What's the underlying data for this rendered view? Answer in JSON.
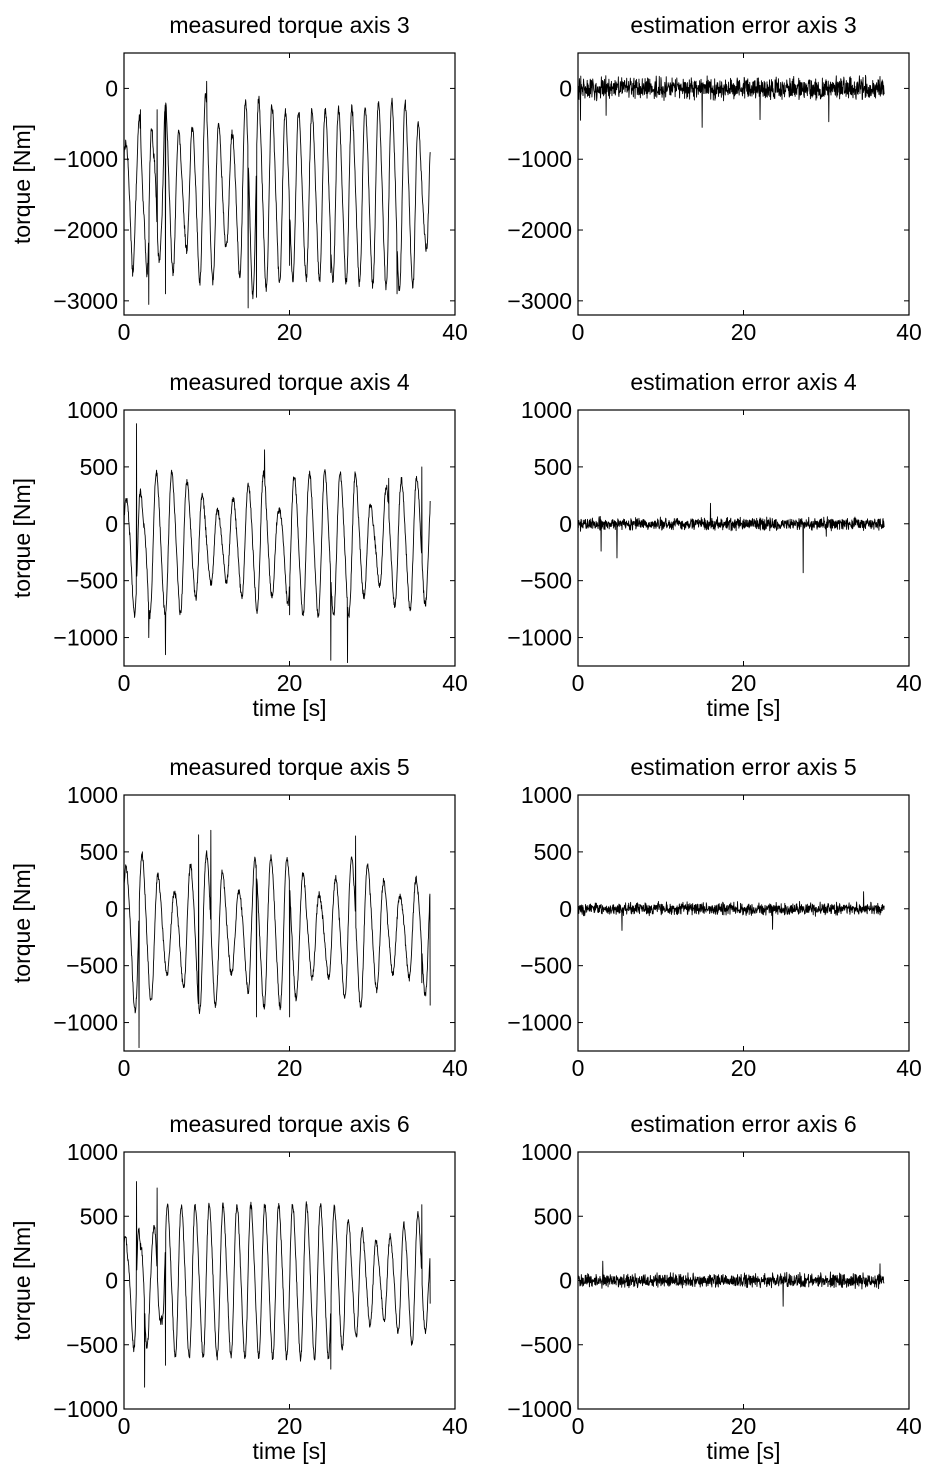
{
  "chart_data": [
    {
      "type": "line",
      "title": "measured torque axis 3",
      "xlabel": "",
      "ylabel": "torque [Nm]",
      "xlim": [
        0,
        40
      ],
      "ylim": [
        -3200,
        500
      ],
      "xticks": [
        0,
        20,
        40
      ],
      "xtick_labels": [
        "0",
        "20",
        "40"
      ],
      "yticks": [
        0,
        -1000,
        -2000,
        -3000
      ],
      "ytick_labels": [
        "0",
        "−1000",
        "−2000",
        "−3000"
      ],
      "grid": false,
      "series": [
        {
          "x_range": [
            0,
            37
          ],
          "cycles": 23,
          "center": -1500,
          "amplitude": 1250,
          "noise": 60,
          "seed": 13,
          "x_sample": [
            0,
            1,
            2,
            3,
            4,
            5,
            10,
            15,
            16,
            20,
            25,
            30,
            33,
            35,
            37
          ],
          "y_sample": [
            -1300,
            -2500,
            -300,
            -3050,
            -300,
            -2900,
            100,
            -3100,
            -2950,
            -2500,
            -2600,
            -2700,
            -2900,
            -2700,
            -900
          ]
        }
      ]
    },
    {
      "type": "line",
      "title": "estimation error axis 3",
      "xlabel": "",
      "ylabel": "",
      "xlim": [
        0,
        40
      ],
      "ylim": [
        -3200,
        500
      ],
      "xticks": [
        0,
        20,
        40
      ],
      "xtick_labels": [
        "0",
        "20",
        "40"
      ],
      "yticks": [
        0,
        -1000,
        -2000,
        -3000
      ],
      "ytick_labels": [
        "0",
        "−1000",
        "−2000",
        "−3000"
      ],
      "grid": false,
      "series": [
        {
          "x_range": [
            0,
            37
          ],
          "cycles": 0,
          "center": 0,
          "amplitude": 0,
          "noise": 130,
          "seed": 31,
          "spikes": [
            [
              0.3,
              -450
            ],
            [
              3.4,
              -380
            ],
            [
              15,
              -550
            ],
            [
              22,
              -440
            ],
            [
              30.3,
              -470
            ]
          ]
        }
      ]
    },
    {
      "type": "line",
      "title": "measured torque axis 4",
      "xlabel": "time [s]",
      "ylabel": "torque [Nm]",
      "xlim": [
        0,
        40
      ],
      "ylim": [
        -1250,
        1000
      ],
      "xticks": [
        0,
        20,
        40
      ],
      "xtick_labels": [
        "0",
        "20",
        "40"
      ],
      "yticks": [
        1000,
        500,
        0,
        -500,
        -1000
      ],
      "ytick_labels": [
        "1000",
        "500",
        "0",
        "−500",
        "−1000"
      ],
      "grid": false,
      "series": [
        {
          "x_range": [
            0,
            37
          ],
          "cycles": 20,
          "center": -170,
          "amplitude": 500,
          "noise": 30,
          "seed": 47,
          "x_sample": [
            0,
            1.5,
            3,
            5,
            17,
            20,
            25,
            27,
            32,
            36,
            37
          ],
          "y_sample": [
            -100,
            880,
            -1000,
            -1150,
            650,
            -800,
            -1200,
            -1220,
            400,
            500,
            200
          ]
        }
      ]
    },
    {
      "type": "line",
      "title": "estimation error axis 4",
      "xlabel": "time [s]",
      "ylabel": "",
      "xlim": [
        0,
        40
      ],
      "ylim": [
        -1250,
        1000
      ],
      "xticks": [
        0,
        20,
        40
      ],
      "xtick_labels": [
        "0",
        "20",
        "40"
      ],
      "yticks": [
        1000,
        500,
        0,
        -500,
        -1000
      ],
      "ytick_labels": [
        "1000",
        "500",
        "0",
        "−500",
        "−1000"
      ],
      "grid": false,
      "series": [
        {
          "x_range": [
            0,
            37
          ],
          "cycles": 0,
          "center": 0,
          "amplitude": 0,
          "noise": 45,
          "seed": 59,
          "spikes": [
            [
              2.8,
              -240
            ],
            [
              4.7,
              -300
            ],
            [
              16,
              180
            ],
            [
              27.2,
              -430
            ],
            [
              30,
              -110
            ]
          ]
        }
      ]
    },
    {
      "type": "line",
      "title": "measured torque axis 5",
      "xlabel": "",
      "ylabel": "torque [Nm]",
      "xlim": [
        0,
        40
      ],
      "ylim": [
        -1250,
        1000
      ],
      "xticks": [
        0,
        20,
        40
      ],
      "xtick_labels": [
        "0",
        "20",
        "40"
      ],
      "yticks": [
        1000,
        500,
        0,
        -500,
        -1000
      ],
      "ytick_labels": [
        "1000",
        "500",
        "0",
        "−500",
        "−1000"
      ],
      "grid": false,
      "series": [
        {
          "x_range": [
            0,
            37
          ],
          "cycles": 19,
          "center": -200,
          "amplitude": 550,
          "noise": 30,
          "seed": 71,
          "x_sample": [
            0,
            1.8,
            9,
            10.5,
            16,
            20,
            28,
            36,
            37
          ],
          "y_sample": [
            -700,
            -1220,
            650,
            690,
            -950,
            -950,
            640,
            -650,
            -850
          ]
        }
      ]
    },
    {
      "type": "line",
      "title": "estimation error axis 5",
      "xlabel": "",
      "ylabel": "",
      "xlim": [
        0,
        40
      ],
      "ylim": [
        -1250,
        1000
      ],
      "xticks": [
        0,
        20,
        40
      ],
      "xtick_labels": [
        "0",
        "20",
        "40"
      ],
      "yticks": [
        1000,
        500,
        0,
        -500,
        -1000
      ],
      "ytick_labels": [
        "1000",
        "500",
        "0",
        "−500",
        "−1000"
      ],
      "grid": false,
      "series": [
        {
          "x_range": [
            0,
            37
          ],
          "cycles": 0,
          "center": 0,
          "amplitude": 0,
          "noise": 45,
          "seed": 83,
          "spikes": [
            [
              5.3,
              -190
            ],
            [
              23.5,
              -180
            ],
            [
              34.5,
              150
            ]
          ]
        }
      ]
    },
    {
      "type": "line",
      "title": "measured torque axis 6",
      "xlabel": "time [s]",
      "ylabel": "torque [Nm]",
      "xlim": [
        0,
        40
      ],
      "ylim": [
        -1000,
        1000
      ],
      "xticks": [
        0,
        20,
        40
      ],
      "xtick_labels": [
        "0",
        "20",
        "40"
      ],
      "yticks": [
        1000,
        500,
        0,
        -500,
        -1000
      ],
      "ytick_labels": [
        "1000",
        "500",
        "0",
        "−500",
        "−1000"
      ],
      "grid": false,
      "series": [
        {
          "x_range": [
            0,
            37
          ],
          "cycles": 22,
          "center": 0,
          "amplitude": 500,
          "noise": 25,
          "seed": 97,
          "x_sample": [
            0,
            1.5,
            2.5,
            4,
            5,
            25,
            36,
            37
          ],
          "y_sample": [
            -300,
            770,
            -830,
            720,
            -660,
            -690,
            590,
            -180
          ]
        }
      ]
    },
    {
      "type": "line",
      "title": "estimation error axis 6",
      "xlabel": "time [s]",
      "ylabel": "",
      "xlim": [
        0,
        40
      ],
      "ylim": [
        -1000,
        1000
      ],
      "xticks": [
        0,
        20,
        40
      ],
      "xtick_labels": [
        "0",
        "20",
        "40"
      ],
      "yticks": [
        1000,
        500,
        0,
        -500,
        -1000
      ],
      "ytick_labels": [
        "1000",
        "500",
        "0",
        "−500",
        "−1000"
      ],
      "grid": false,
      "series": [
        {
          "x_range": [
            0,
            37
          ],
          "cycles": 0,
          "center": 0,
          "amplitude": 0,
          "noise": 45,
          "seed": 101,
          "spikes": [
            [
              3,
              150
            ],
            [
              24.8,
              -200
            ],
            [
              36.5,
              130
            ]
          ]
        }
      ]
    }
  ]
}
